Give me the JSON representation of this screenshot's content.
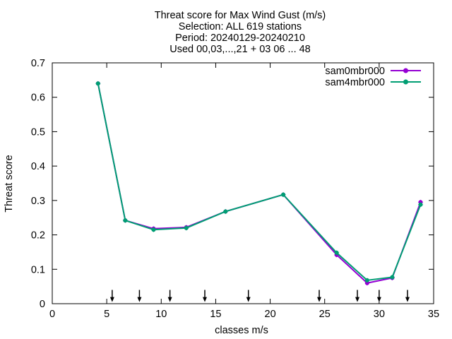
{
  "chart_data": {
    "type": "line",
    "title_lines": [
      "Threat score  for Max Wind Gust (m/s)",
      "Selection: ALL    619 stations",
      "Period: 20240129-20240210",
      "Used 00,03,...,21 + 03 06 ... 48"
    ],
    "xlabel": "classes m/s",
    "ylabel": "Threat score",
    "xlim": [
      0,
      35
    ],
    "ylim": [
      0,
      0.7
    ],
    "xticks": [
      0,
      5,
      10,
      15,
      20,
      25,
      30,
      35
    ],
    "xtick_labels": [
      "0",
      "5",
      "10",
      "15",
      "20",
      "25",
      "30",
      "35"
    ],
    "yticks": [
      0,
      0.1,
      0.2,
      0.3,
      0.4,
      0.5,
      0.6,
      0.7
    ],
    "ytick_labels": [
      "0",
      "0.1",
      "0.2",
      "0.3",
      "0.4",
      "0.5",
      "0.6",
      "0.7"
    ],
    "grid": false,
    "legend_position": "top-right",
    "series": [
      {
        "name": "sam0mbr000",
        "color": "#9400d3",
        "x": [
          4.2,
          6.7,
          9.3,
          12.3,
          15.9,
          21.2,
          26.1,
          28.9,
          31.2,
          33.8
        ],
        "y": [
          0.64,
          0.242,
          0.218,
          0.222,
          0.268,
          0.317,
          0.142,
          0.06,
          0.075,
          0.295
        ]
      },
      {
        "name": "sam4mbr000",
        "color": "#009e73",
        "x": [
          4.2,
          6.7,
          9.3,
          12.3,
          15.9,
          21.2,
          26.1,
          28.9,
          31.2,
          33.8
        ],
        "y": [
          0.64,
          0.242,
          0.215,
          0.22,
          0.268,
          0.317,
          0.148,
          0.068,
          0.077,
          0.288
        ]
      }
    ],
    "threshold_arrows_x": [
      5.5,
      8,
      10.8,
      14,
      18,
      24.5,
      28,
      30,
      32.6
    ],
    "arrow_y_range": [
      0.04,
      0.005
    ]
  }
}
